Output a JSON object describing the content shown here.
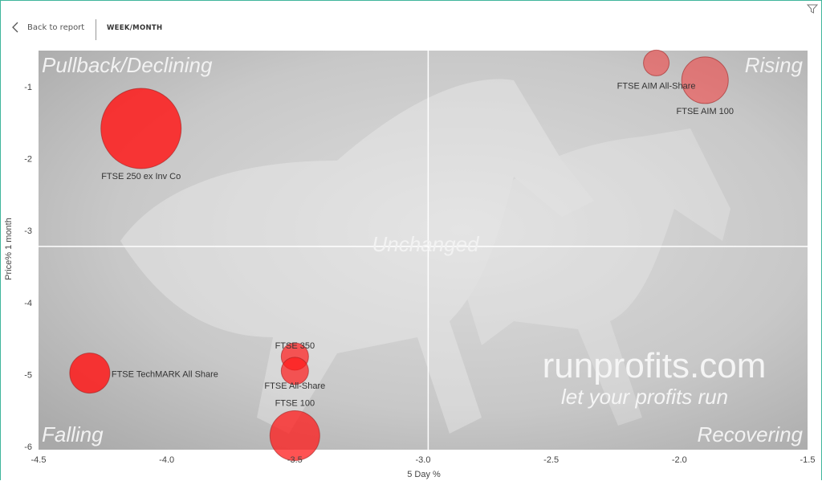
{
  "header": {
    "back_label": "Back to report",
    "page_title": "WEEK/MONTH"
  },
  "colors": {
    "bubble": "#ff1a1a",
    "background": "#c9c9c9",
    "accent": "#3fb59b"
  },
  "watermark": {
    "title": "runprofits.com",
    "tagline": "let your profits run"
  },
  "quadrants": {
    "top_left": "Pullback/Declining",
    "top_right": "Rising",
    "bottom_left": "Falling",
    "bottom_right": "Recovering",
    "center": "Unchanged"
  },
  "chart_data": {
    "type": "scatter",
    "subtype": "bubble",
    "xlabel": "5 Day %",
    "ylabel": "Price% 1 month",
    "xlim": [
      -4.5,
      -1.5
    ],
    "ylim": [
      -6,
      -0.5
    ],
    "xticks": [
      "-4.5",
      "-4.0",
      "-3.5",
      "-3.0",
      "-2.5",
      "-2.0",
      "-1.5"
    ],
    "yticks": [
      "-1",
      "-2",
      "-3",
      "-4",
      "-5",
      "-6"
    ],
    "reference_lines": {
      "x": -2.98,
      "y": -3.22
    },
    "grid": false,
    "points": [
      {
        "label": "FTSE 250 ex Inv Co",
        "x": -4.1,
        "y": -1.58,
        "size": 50,
        "opacity": 0.85
      },
      {
        "label": "FTSE AIM All-Share",
        "x": -2.09,
        "y": -0.67,
        "size": 16,
        "opacity": 0.45
      },
      {
        "label": "FTSE AIM 100",
        "x": -1.9,
        "y": -0.91,
        "size": 29,
        "opacity": 0.45
      },
      {
        "label": "FTSE TechMARK All Share",
        "x": -4.3,
        "y": -4.98,
        "size": 25,
        "opacity": 0.85
      },
      {
        "label": "FTSE 350",
        "x": -3.5,
        "y": -4.75,
        "size": 17,
        "opacity": 0.7
      },
      {
        "label": "FTSE All-Share",
        "x": -3.5,
        "y": -4.95,
        "size": 17,
        "opacity": 0.7
      },
      {
        "label": "FTSE 100",
        "x": -3.5,
        "y": -5.85,
        "size": 31,
        "opacity": 0.75
      }
    ]
  }
}
